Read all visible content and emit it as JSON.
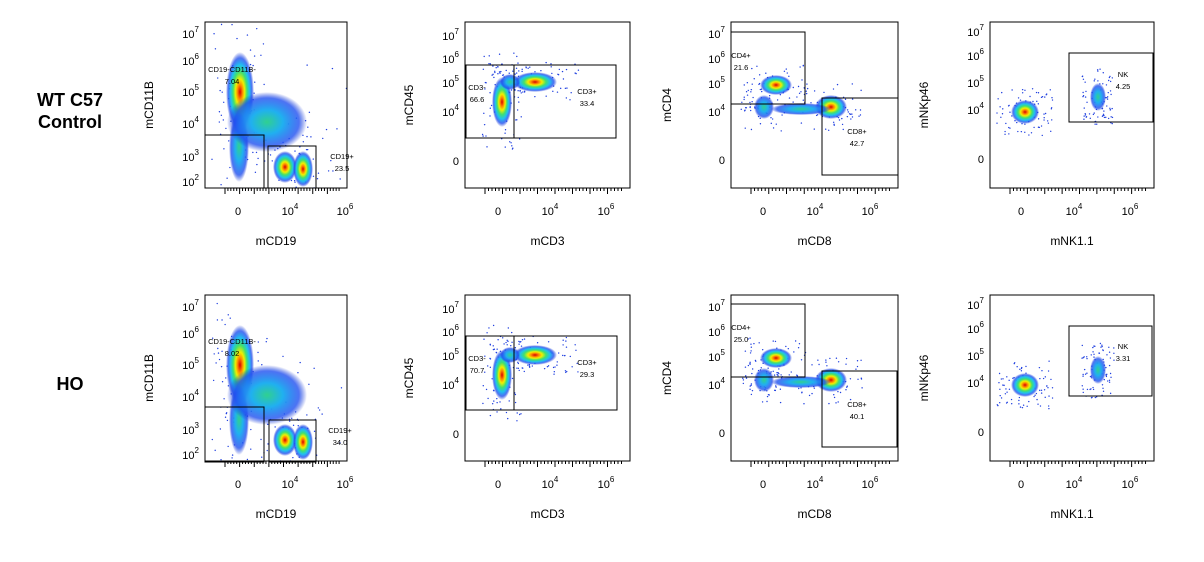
{
  "rows": [
    {
      "label": [
        "WT C57",
        "Control"
      ],
      "panels": [
        {
          "x_label": "mCD19",
          "y_label": "mCD11B",
          "y_ticks": [
            {
              "base": "10",
              "exponent": "7"
            },
            {
              "base": "10",
              "exponent": "6"
            },
            {
              "base": "10",
              "exponent": "5"
            },
            {
              "base": "10",
              "exponent": "4"
            },
            {
              "base": "10",
              "exponent": "3"
            },
            {
              "base": "10",
              "exponent": "2"
            }
          ],
          "x_ticks": [
            "0",
            {
              "base": "10",
              "exponent": "4"
            },
            {
              "base": "10",
              "exponent": "6"
            }
          ],
          "gates": [
            {
              "name": "CD19-CD11B-",
              "value": "7.04"
            },
            {
              "name": "CD19+",
              "value": "23.5"
            }
          ]
        },
        {
          "x_label": "mCD3",
          "y_label": "mCD45",
          "y_ticks": [
            {
              "base": "10",
              "exponent": "7"
            },
            {
              "base": "10",
              "exponent": "6"
            },
            {
              "base": "10",
              "exponent": "5"
            },
            {
              "base": "10",
              "exponent": "4"
            },
            "0"
          ],
          "x_ticks": [
            "0",
            {
              "base": "10",
              "exponent": "4"
            },
            {
              "base": "10",
              "exponent": "6"
            }
          ],
          "gates": [
            {
              "name": "CD3-",
              "value": "66.6"
            },
            {
              "name": "CD3+",
              "value": "33.4"
            }
          ]
        },
        {
          "x_label": "mCD8",
          "y_label": "mCD4",
          "y_ticks": [
            {
              "base": "10",
              "exponent": "7"
            },
            {
              "base": "10",
              "exponent": "6"
            },
            {
              "base": "10",
              "exponent": "5"
            },
            {
              "base": "10",
              "exponent": "4"
            },
            "0"
          ],
          "x_ticks": [
            "0",
            {
              "base": "10",
              "exponent": "4"
            },
            {
              "base": "10",
              "exponent": "6"
            }
          ],
          "gates": [
            {
              "name": "CD4+",
              "value": "21.6"
            },
            {
              "name": "CD8+",
              "value": "42.7"
            }
          ]
        },
        {
          "x_label": "mNK1.1",
          "y_label": "mNKp46",
          "y_ticks": [
            {
              "base": "10",
              "exponent": "7"
            },
            {
              "base": "10",
              "exponent": "6"
            },
            {
              "base": "10",
              "exponent": "5"
            },
            {
              "base": "10",
              "exponent": "4"
            },
            "0"
          ],
          "x_ticks": [
            "0",
            {
              "base": "10",
              "exponent": "4"
            },
            {
              "base": "10",
              "exponent": "6"
            }
          ],
          "gates": [
            {
              "name": "NK",
              "value": "4.25"
            }
          ]
        }
      ]
    },
    {
      "label": [
        "HO"
      ],
      "panels": [
        {
          "x_label": "mCD19",
          "y_label": "mCD11B",
          "y_ticks": [
            {
              "base": "10",
              "exponent": "7"
            },
            {
              "base": "10",
              "exponent": "6"
            },
            {
              "base": "10",
              "exponent": "5"
            },
            {
              "base": "10",
              "exponent": "4"
            },
            {
              "base": "10",
              "exponent": "3"
            },
            {
              "base": "10",
              "exponent": "2"
            }
          ],
          "x_ticks": [
            "0",
            {
              "base": "10",
              "exponent": "4"
            },
            {
              "base": "10",
              "exponent": "6"
            }
          ],
          "gates": [
            {
              "name": "CD19-CD11B-",
              "value": "8.02"
            },
            {
              "name": "CD19+",
              "value": "34.0"
            }
          ]
        },
        {
          "x_label": "mCD3",
          "y_label": "mCD45",
          "y_ticks": [
            {
              "base": "10",
              "exponent": "7"
            },
            {
              "base": "10",
              "exponent": "6"
            },
            {
              "base": "10",
              "exponent": "5"
            },
            {
              "base": "10",
              "exponent": "4"
            },
            "0"
          ],
          "x_ticks": [
            "0",
            {
              "base": "10",
              "exponent": "4"
            },
            {
              "base": "10",
              "exponent": "6"
            }
          ],
          "gates": [
            {
              "name": "CD3-",
              "value": "70.7"
            },
            {
              "name": "CD3+",
              "value": "29.3"
            }
          ]
        },
        {
          "x_label": "mCD8",
          "y_label": "mCD4",
          "y_ticks": [
            {
              "base": "10",
              "exponent": "7"
            },
            {
              "base": "10",
              "exponent": "6"
            },
            {
              "base": "10",
              "exponent": "5"
            },
            {
              "base": "10",
              "exponent": "4"
            },
            "0"
          ],
          "x_ticks": [
            "0",
            {
              "base": "10",
              "exponent": "4"
            },
            {
              "base": "10",
              "exponent": "6"
            }
          ],
          "gates": [
            {
              "name": "CD4+",
              "value": "25.0"
            },
            {
              "name": "CD8+",
              "value": "40.1"
            }
          ]
        },
        {
          "x_label": "mNK1.1",
          "y_label": "mNKp46",
          "y_ticks": [
            {
              "base": "10",
              "exponent": "7"
            },
            {
              "base": "10",
              "exponent": "6"
            },
            {
              "base": "10",
              "exponent": "5"
            },
            {
              "base": "10",
              "exponent": "4"
            },
            "0"
          ],
          "x_ticks": [
            "0",
            {
              "base": "10",
              "exponent": "4"
            },
            {
              "base": "10",
              "exponent": "6"
            }
          ],
          "gates": [
            {
              "name": "NK",
              "value": "3.31"
            }
          ]
        }
      ]
    }
  ]
}
